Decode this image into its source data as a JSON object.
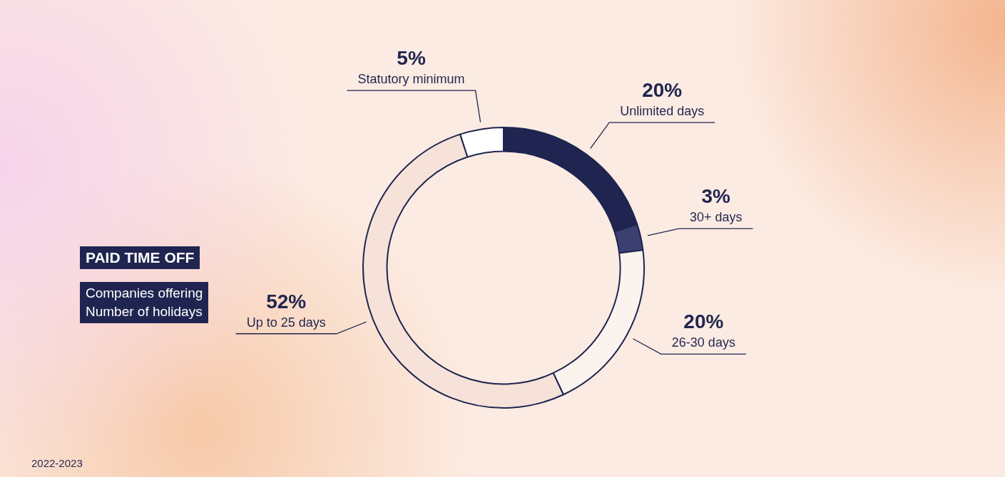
{
  "chart_data": {
    "type": "donut",
    "title": "PAID TIME OFF",
    "subtitle": "Companies offering\nNumber of holidays",
    "categories": [
      "Unlimited days",
      "30+ days",
      "26-30 days",
      "Up to 25 days",
      "Statutory minimum"
    ],
    "values": [
      20,
      3,
      20,
      52,
      5
    ],
    "value_labels": [
      "20%",
      "3%",
      "20%",
      "52%",
      "5%"
    ],
    "colors": [
      "#1f2550",
      "#3b4070",
      "#fbf3ee",
      "#f6e2d8",
      "#ffffff"
    ],
    "legend": false,
    "annotations": [
      "2022-2023"
    ]
  }
}
